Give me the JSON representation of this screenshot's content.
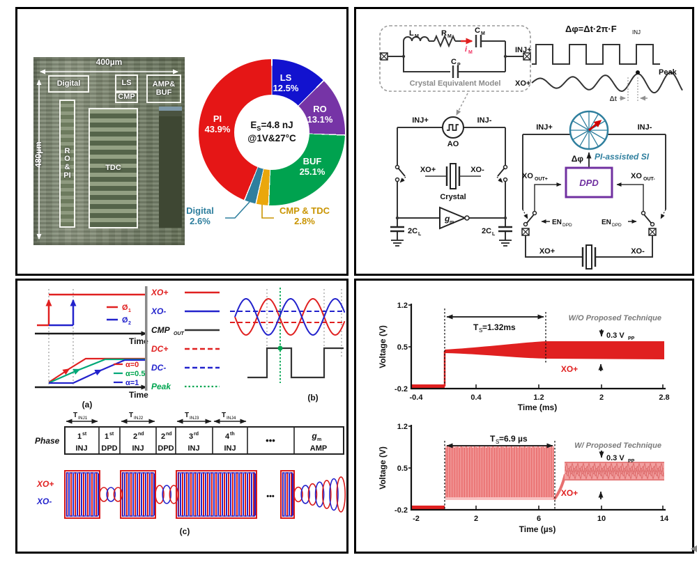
{
  "chart_data": [
    {
      "type": "donut",
      "center_label": "ES=4.8 nJ @1V&27°C",
      "legend_position": "on-slices",
      "slices": [
        {
          "name": "LS",
          "value_pct": 12.5,
          "label": "12.5%",
          "color": "#1212cf"
        },
        {
          "name": "RO",
          "value_pct": 13.1,
          "label": "13.1%",
          "color": "#7634a6"
        },
        {
          "name": "BUF",
          "value_pct": 25.1,
          "label": "25.1%",
          "color": "#00a24f"
        },
        {
          "name": "CMP & TDC",
          "value_pct": 2.8,
          "label": "2.8%",
          "color": "#eaa70b"
        },
        {
          "name": "Digital",
          "value_pct": 2.6,
          "label": "2.6%",
          "color": "#2f7f9e"
        },
        {
          "name": "PI",
          "value_pct": 43.9,
          "label": "43.9%",
          "color": "#e51616"
        }
      ]
    },
    {
      "type": "line",
      "title": "W/O Proposed Technique",
      "xlabel": "Time (ms)",
      "ylabel": "Voltage (V)",
      "xlim": [
        -0.4,
        2.8
      ],
      "ylim": [
        -0.2,
        1.2
      ],
      "x_tick_labels": [
        "-0.4",
        "0.4",
        "1.2",
        "2",
        "2.8"
      ],
      "y_tick_labels": [
        "1.2",
        "0.5",
        "-0.2"
      ],
      "grid": false,
      "series": [
        {
          "name": "XO+",
          "color": "#e02020",
          "description": "Flat at -0.2 V until t=0; oscillation envelope grows from ~0.45 V, settling to a 0.3 Vpp band centered near 0.45 V after 1.32 ms"
        }
      ],
      "startup_time_label": "TS=1.32ms",
      "startup_time_ms": 1.32,
      "settled_amplitude_label": "0.3 VPP"
    },
    {
      "type": "line",
      "title": "W/ Proposed Technique",
      "xlabel": "Time (µs)",
      "ylabel": "Voltage (V)",
      "xlim": [
        -2,
        14
      ],
      "ylim": [
        -0.2,
        1.2
      ],
      "x_tick_labels": [
        "-2",
        "2",
        "6",
        "10",
        "14"
      ],
      "y_tick_labels": [
        "1.2",
        "0.5",
        "-0.2"
      ],
      "grid": false,
      "series": [
        {
          "name": "XO+",
          "color": "#e02020",
          "description": "Flat at -0.2 V until t=0; near rail-to-rail injected oscillation until 6.9 µs, then settles to a 0.3 Vpp band centered near 0.45 V"
        }
      ],
      "startup_time_label": "TS=6.9 µs",
      "startup_time_us": 6.9,
      "settled_amplitude_label": "0.3 VPP"
    }
  ],
  "top_left": {
    "chip": {
      "width_label": "400µm",
      "height_label": "480µm",
      "digital": "Digital",
      "ls": "LS",
      "cmp": "CMP",
      "amp1": "AMP&",
      "amp2": "BUF",
      "ro1": "R O",
      "ro2": "&",
      "ro3": "PI",
      "tdc": "TDC"
    },
    "pie_center": {
      "e_b": "E",
      "e_s": "S",
      "e_r": "=4.8 nJ",
      "line2": "@1V&27°C"
    }
  },
  "top_right": {
    "model": {
      "l_b": "L",
      "l_s": "M",
      "r_b": "R",
      "r_s": "M",
      "c_b": "C",
      "c_s": "M",
      "i_b": "i",
      "i_s": "M",
      "cp_b": "C",
      "cp_s": "P",
      "caption": "Crystal Equivalent Model"
    },
    "formula": {
      "main": "Δφ=Δt·2π·F",
      "sub": "INJ"
    },
    "wave": {
      "inj": "INJ+",
      "xo": "XO+",
      "peak": "Peak",
      "dt": "Δt"
    },
    "osc": {
      "inj_p": "INJ+",
      "inj_n": "INJ-",
      "ao": "AO",
      "xo_p": "XO+",
      "xo_n": "XO-",
      "crystal": "Crystal",
      "gm_b": "g",
      "gm_s": "m",
      "cl_b": "2C",
      "cl_s": "L"
    },
    "pi": {
      "inj_p": "INJ+",
      "inj_n": "INJ-",
      "dphi": "Δφ",
      "label": "PI-assisted SI",
      "dpd": "DPD",
      "xo_out_b": "XO",
      "xo_out_p_s": "OUT+",
      "xo_out_n_s": "OUT-",
      "en_b": "EN",
      "en_s": "DPD",
      "xo_p": "XO+",
      "xo_n": "XO-"
    }
  },
  "bottom_left": {
    "a": {
      "phi1_b": "Ø",
      "phi1_s": "1",
      "phi2_b": "Ø",
      "phi2_s": "2",
      "time1": "Time",
      "time2": "Time",
      "alpha0": "α=0",
      "alpha05": "α=0.5",
      "alpha1": "α=1",
      "caption": "(a)"
    },
    "legend": {
      "xo_p": "XO+",
      "xo_n": "XO-",
      "cmp_b": "CMP",
      "cmp_s": "OUT",
      "dc_p": "DC+",
      "dc_n": "DC-",
      "peak": "Peak"
    },
    "b": {
      "caption": "(b)"
    },
    "table": {
      "row_label": "Phase",
      "t1_b": "T",
      "t1_s": "INJ1",
      "t2_b": "T",
      "t2_s": "INJ2",
      "t3_b": "T",
      "t3_s": "INJ3",
      "t4_b": "T",
      "t4_s": "INJ4",
      "cells": [
        {
          "num": "1",
          "ord": "st",
          "word": "INJ"
        },
        {
          "num": "1",
          "ord": "st",
          "word": "DPD"
        },
        {
          "num": "2",
          "ord": "nd",
          "word": "INJ"
        },
        {
          "num": "2",
          "ord": "nd",
          "word": "DPD"
        },
        {
          "num": "3",
          "ord": "rd",
          "word": "INJ"
        },
        {
          "num": "4",
          "ord": "th",
          "word": "INJ"
        },
        {
          "dots": "•••"
        },
        {
          "gm_b": "g",
          "gm_s": "m",
          "word": "AMP"
        }
      ]
    },
    "c": {
      "xo_p": "XO+",
      "xo_n": "XO-",
      "dots": "•••",
      "caption": "(c)"
    }
  },
  "bottom_right": {
    "plot1": {
      "ts_b": "T",
      "ts_s": "S",
      "ts_r": "=1.32ms",
      "note": "W/O Proposed Technique",
      "vpp_b": "0.3 V",
      "vpp_s": "PP",
      "trace": "XO+"
    },
    "plot2": {
      "ts_b": "T",
      "ts_s": "S",
      "ts_r": "=6.9 µs",
      "note": "W/ Proposed Technique",
      "vpp_b": "0.3 V",
      "vpp_s": "PP",
      "trace": "XO+"
    }
  }
}
